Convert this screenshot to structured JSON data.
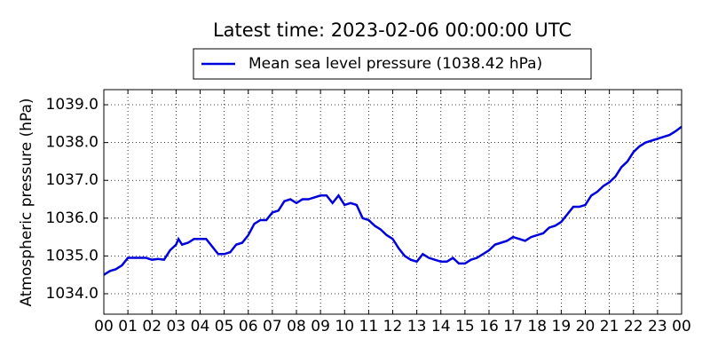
{
  "chart_data": {
    "type": "line",
    "title": "Latest time: 2023-02-06 00:00:00 UTC",
    "ylabel": "Atmospheric pressure (hPa)",
    "legend": "upper center",
    "grid": true,
    "xlim": [
      0,
      24
    ],
    "ylim": [
      1033.46,
      1039.4
    ],
    "xticks": [
      {
        "value": 0,
        "label": "00"
      },
      {
        "value": 1,
        "label": "01"
      },
      {
        "value": 2,
        "label": "02"
      },
      {
        "value": 3,
        "label": "03"
      },
      {
        "value": 4,
        "label": "04"
      },
      {
        "value": 5,
        "label": "05"
      },
      {
        "value": 6,
        "label": "06"
      },
      {
        "value": 7,
        "label": "07"
      },
      {
        "value": 8,
        "label": "08"
      },
      {
        "value": 9,
        "label": "09"
      },
      10,
      11,
      12,
      13,
      14,
      15,
      16,
      17,
      18,
      19,
      20,
      21,
      22,
      23,
      {
        "value": 24,
        "label": "00"
      }
    ],
    "yticks": [
      {
        "value": 1034,
        "label": "1034.0"
      },
      {
        "value": 1035,
        "label": "1035.0"
      },
      {
        "value": 1036,
        "label": "1036.0"
      },
      {
        "value": 1037,
        "label": "1037.0"
      },
      {
        "value": 1038,
        "label": "1038.0"
      },
      {
        "value": 1039,
        "label": "1039.0"
      }
    ],
    "x": [
      0,
      0.25,
      0.5,
      0.75,
      1,
      1.25,
      1.5,
      1.75,
      2,
      2.25,
      2.5,
      2.75,
      3,
      3.1,
      3.25,
      3.5,
      3.75,
      4,
      4.25,
      4.5,
      4.75,
      5,
      5.25,
      5.5,
      5.75,
      6,
      6.25,
      6.5,
      6.75,
      7,
      7.25,
      7.5,
      7.75,
      8,
      8.25,
      8.5,
      8.75,
      9,
      9.25,
      9.5,
      9.75,
      10,
      10.25,
      10.5,
      10.75,
      11,
      11.25,
      11.5,
      11.75,
      12,
      12.25,
      12.5,
      12.75,
      13,
      13.25,
      13.5,
      13.75,
      14,
      14.25,
      14.5,
      14.75,
      15,
      15.25,
      15.5,
      15.75,
      16,
      16.25,
      16.5,
      16.75,
      17,
      17.25,
      17.5,
      17.75,
      18,
      18.25,
      18.5,
      18.75,
      19,
      19.25,
      19.5,
      19.75,
      20,
      20.25,
      20.5,
      20.75,
      21,
      21.25,
      21.5,
      21.75,
      22,
      22.25,
      22.5,
      22.75,
      23,
      23.25,
      23.5,
      23.75,
      24
    ],
    "series": [
      {
        "name": "Mean sea level pressure (1038.42 hPa)",
        "color": "#0000dd",
        "values": [
          1034.5,
          1034.6,
          1034.65,
          1034.75,
          1034.95,
          1034.95,
          1034.95,
          1034.95,
          1034.9,
          1034.92,
          1034.9,
          1035.15,
          1035.3,
          1035.45,
          1035.3,
          1035.35,
          1035.45,
          1035.45,
          1035.45,
          1035.25,
          1035.05,
          1035.05,
          1035.1,
          1035.3,
          1035.35,
          1035.55,
          1035.85,
          1035.95,
          1035.95,
          1036.15,
          1036.2,
          1036.45,
          1036.5,
          1036.4,
          1036.5,
          1036.5,
          1036.55,
          1036.6,
          1036.6,
          1036.4,
          1036.6,
          1036.35,
          1036.4,
          1036.35,
          1036.0,
          1035.95,
          1035.8,
          1035.7,
          1035.55,
          1035.45,
          1035.2,
          1035.0,
          1034.9,
          1034.85,
          1035.05,
          1034.95,
          1034.9,
          1034.85,
          1034.85,
          1034.95,
          1034.8,
          1034.8,
          1034.9,
          1034.95,
          1035.05,
          1035.15,
          1035.3,
          1035.35,
          1035.4,
          1035.5,
          1035.45,
          1035.4,
          1035.5,
          1035.55,
          1035.6,
          1035.75,
          1035.8,
          1035.9,
          1036.1,
          1036.3,
          1036.3,
          1036.35,
          1036.6,
          1036.7,
          1036.85,
          1036.95,
          1037.1,
          1037.35,
          1037.5,
          1037.75,
          1037.9,
          1038.0,
          1038.05,
          1038.1,
          1038.15,
          1038.2,
          1038.3,
          1038.42
        ]
      }
    ]
  }
}
